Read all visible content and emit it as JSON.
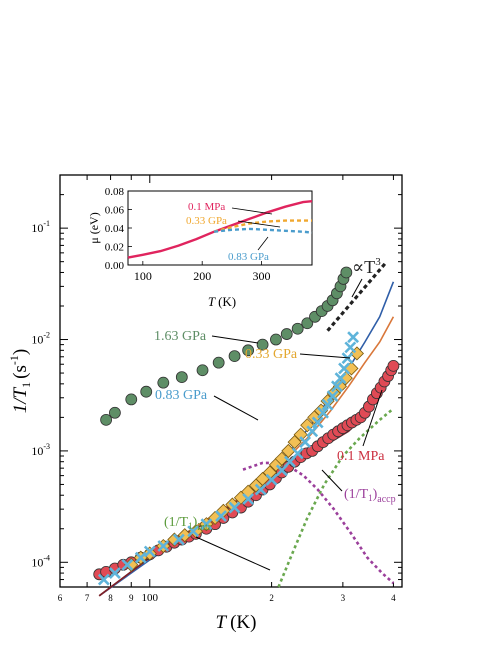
{
  "chart_data": [
    {
      "type": "scatter",
      "title": "",
      "xlabel": "T",
      "xlabel_unit": "(K)",
      "ylabel": "1/T",
      "ylabel_sub": "1",
      "ylabel_unit": "(s",
      "ylabel_unit_sup": "-1",
      "ylabel_unit_close": ")",
      "xscale": "log",
      "yscale": "log",
      "xlim": [
        60,
        420
      ],
      "ylim": [
        6e-05,
        0.3
      ],
      "x_ticks": [
        {
          "value": 60,
          "label": "6"
        },
        {
          "value": 70,
          "label": "7"
        },
        {
          "value": 80,
          "label": "8"
        },
        {
          "value": 90,
          "label": "9"
        },
        {
          "value": 100,
          "label": "100"
        },
        {
          "value": 200,
          "label": "2"
        },
        {
          "value": 300,
          "label": "3"
        },
        {
          "value": 400,
          "label": "4"
        }
      ],
      "y_ticks": [
        {
          "value": 0.0001,
          "base": "10",
          "exp": "-4"
        },
        {
          "value": 0.001,
          "base": "10",
          "exp": "-3"
        },
        {
          "value": 0.01,
          "base": "10",
          "exp": "-2"
        },
        {
          "value": 0.1,
          "base": "10",
          "exp": "-1"
        }
      ],
      "series": [
        {
          "name": "1.63 GPa",
          "marker": "circle",
          "color": "#5e8e66",
          "x": [
            78,
            82,
            90,
            98,
            108,
            120,
            135,
            148,
            162,
            175,
            190,
            205,
            218,
            232,
            245,
            256,
            266,
            275,
            283,
            290,
            296,
            301,
            306
          ],
          "y": [
            0.0019,
            0.0022,
            0.0029,
            0.0034,
            0.0041,
            0.0046,
            0.0053,
            0.0062,
            0.0071,
            0.008,
            0.009,
            0.01,
            0.0112,
            0.0125,
            0.014,
            0.016,
            0.018,
            0.02,
            0.0225,
            0.026,
            0.03,
            0.035,
            0.04
          ]
        },
        {
          "name": "0.33 GPa",
          "marker": "diamond",
          "color": "#f2c055",
          "x": [
            90,
            95,
            100,
            108,
            115,
            122,
            130,
            138,
            145,
            152,
            160,
            168,
            175,
            183,
            190,
            198,
            205,
            212,
            220,
            228,
            236,
            245,
            255,
            265,
            275,
            285,
            295,
            305,
            315,
            325
          ],
          "y": [
            9.5e-05,
            0.00011,
            0.00012,
            0.00014,
            0.00016,
            0.000175,
            0.00019,
            0.00022,
            0.00025,
            0.00029,
            0.00033,
            0.00038,
            0.00043,
            0.00049,
            0.00056,
            0.00064,
            0.00075,
            0.00085,
            0.001,
            0.0012,
            0.0014,
            0.0017,
            0.002,
            0.0023,
            0.0028,
            0.0033,
            0.0038,
            0.0045,
            0.0055,
            0.0075
          ]
        },
        {
          "name": "0.83 GPa",
          "marker": "x",
          "color": "#5fb4da",
          "x": [
            77,
            82,
            88,
            95,
            100,
            108,
            118,
            128,
            138,
            150,
            162,
            175,
            188,
            200,
            212,
            222,
            232,
            242,
            252,
            260,
            268,
            275,
            283,
            290,
            296,
            302,
            308,
            313,
            318
          ],
          "y": [
            7e-05,
            8e-05,
            9.5e-05,
            0.00011,
            0.000125,
            0.00014,
            0.00016,
            0.00019,
            0.00022,
            0.00026,
            0.00031,
            0.00037,
            0.00045,
            0.00055,
            0.00067,
            0.0008,
            0.00095,
            0.0012,
            0.0015,
            0.0018,
            0.0022,
            0.0026,
            0.0031,
            0.0038,
            0.0045,
            0.0055,
            0.0068,
            0.0085,
            0.0105
          ]
        },
        {
          "name": "0.1 MPa",
          "marker": "circle",
          "color": "#e04a55",
          "x": [
            75,
            78,
            82,
            86,
            90,
            95,
            100,
            105,
            110,
            115,
            120,
            125,
            130,
            138,
            145,
            152,
            160,
            168,
            175,
            183,
            190,
            198,
            205,
            212,
            220,
            228,
            236,
            244,
            252,
            260,
            268,
            276,
            284,
            292,
            300,
            308,
            316,
            324,
            332,
            340,
            348,
            356,
            364,
            372,
            380,
            388,
            395,
            400
          ],
          "y": [
            7.8e-05,
            8.2e-05,
            8.8e-05,
            9.5e-05,
            0.0001,
            0.00011,
            0.000118,
            0.000128,
            0.000138,
            0.00015,
            0.00016,
            0.00017,
            0.00018,
            0.0002,
            0.00022,
            0.00025,
            0.00028,
            0.00031,
            0.00035,
            0.0004,
            0.00045,
            0.0005,
            0.00057,
            0.00064,
            0.00072,
            0.0008,
            0.00088,
            0.00095,
            0.001,
            0.0011,
            0.0012,
            0.0013,
            0.0014,
            0.0015,
            0.0016,
            0.0017,
            0.0018,
            0.0019,
            0.002,
            0.0022,
            0.0025,
            0.0029,
            0.0033,
            0.0037,
            0.0042,
            0.0047,
            0.0053,
            0.0058
          ]
        }
      ],
      "fit_lines": [
        {
          "name": "fit-0.83 GPa",
          "color": "#2f5ea8",
          "x": [
            75,
            100,
            130,
            160,
            190,
            220,
            250,
            280,
            310,
            340,
            370,
            400
          ],
          "y": [
            5e-05,
            0.000105,
            0.0002,
            0.00033,
            0.00055,
            0.00095,
            0.0017,
            0.0031,
            0.0055,
            0.0095,
            0.016,
            0.033
          ]
        },
        {
          "name": "fit-0.33 GPa",
          "color": "#d9773a",
          "x": [
            75,
            100,
            130,
            160,
            190,
            220,
            250,
            280,
            310,
            340,
            370,
            400
          ],
          "y": [
            5e-05,
            0.00011,
            0.00021,
            0.00034,
            0.00054,
            0.00088,
            0.0014,
            0.0023,
            0.0038,
            0.0062,
            0.0095,
            0.016
          ]
        },
        {
          "name": "fit-0.1 MPa",
          "color": "#7a1f2b",
          "x": [
            75,
            100,
            130,
            160,
            190,
            220,
            250,
            280,
            310,
            340,
            370,
            400
          ],
          "y": [
            5e-05,
            0.00011,
            0.0002,
            0.00033,
            0.00052,
            0.00078,
            0.00098,
            0.0012,
            0.0015,
            0.0021,
            0.0032,
            0.0052
          ]
        },
        {
          "name": "T3-guide",
          "color": "#222222",
          "dash": "4,3",
          "width": 3.2,
          "x": [
            275,
            385
          ],
          "y": [
            0.012,
            0.05
          ]
        },
        {
          "name": "intr-component",
          "color": "#6aa84f",
          "dash": "3,3",
          "width": 2.6,
          "x": [
            208,
            225,
            245,
            270,
            300,
            330,
            370,
            400
          ],
          "y": [
            6e-05,
            0.00012,
            0.00025,
            0.0005,
            0.0009,
            0.0013,
            0.0019,
            0.0024
          ]
        },
        {
          "name": "accp-component",
          "color": "#9b3f9b",
          "dash": "3,3",
          "width": 2.6,
          "x": [
            170,
            190,
            205,
            222,
            240,
            260,
            285,
            315,
            345,
            375,
            400
          ],
          "y": [
            0.00068,
            0.00078,
            0.00078,
            0.00072,
            0.0006,
            0.00045,
            0.0003,
            0.00018,
            0.00011,
            8e-05,
            6.5e-05
          ]
        }
      ],
      "annotations": [
        {
          "name": "label-163",
          "text": "1.63 GPa",
          "color": "#5e8e66"
        },
        {
          "name": "label-033",
          "text": "0.33 GPa",
          "color": "#e3a72f"
        },
        {
          "name": "label-083",
          "text": "0.83 GPa",
          "color": "#4a9ccc"
        },
        {
          "name": "label-01",
          "text": "0.1 MPa",
          "color": "#cc3040"
        },
        {
          "name": "label-T3",
          "text": "∝T",
          "sup": "3",
          "color": "#222222"
        },
        {
          "name": "label-accp",
          "text": "(1/T",
          "sub": "1",
          "tail": ")",
          "sub2": "accp",
          "color": "#9b3f9b"
        },
        {
          "name": "label-intr",
          "text": "(1/T",
          "sub": "1",
          "tail": ")",
          "sub2": "intr",
          "color": "#5a9a3a"
        }
      ]
    },
    {
      "type": "line",
      "title": "",
      "xlabel": "T",
      "xlabel_unit": "(K)",
      "ylabel": "μ (eV)",
      "xlim": [
        75,
        385
      ],
      "ylim": [
        0,
        0.08
      ],
      "x_ticks": [
        100,
        200,
        300
      ],
      "y_ticks": [
        0,
        0.02,
        0.04,
        0.06,
        0.08
      ],
      "series": [
        {
          "name": "0.1 MPa",
          "color": "#e0245e",
          "dash": "",
          "x": [
            75,
            100,
            130,
            160,
            190,
            220,
            250,
            280,
            310,
            340,
            370,
            385
          ],
          "y": [
            0.008,
            0.011,
            0.015,
            0.021,
            0.028,
            0.036,
            0.043,
            0.05,
            0.057,
            0.063,
            0.068,
            0.069
          ]
        },
        {
          "name": "0.33 GPa",
          "color": "#f0a830",
          "dash": "4,3",
          "x": [
            220,
            250,
            280,
            310,
            340,
            370,
            385
          ],
          "y": [
            0.036,
            0.041,
            0.045,
            0.047,
            0.048,
            0.048,
            0.048
          ]
        },
        {
          "name": "0.83 GPa",
          "color": "#4a9ccc",
          "dash": "4,3",
          "x": [
            220,
            250,
            280,
            310,
            340,
            370,
            385
          ],
          "y": [
            0.036,
            0.038,
            0.039,
            0.038,
            0.037,
            0.036,
            0.035
          ]
        }
      ],
      "labels": [
        {
          "name": "inset-label-01",
          "text": "0.1 MPa",
          "color": "#e0245e"
        },
        {
          "name": "inset-label-033",
          "text": "0.33 GPa",
          "color": "#f0a830"
        },
        {
          "name": "inset-label-083",
          "text": "0.83 GPa",
          "color": "#4a9ccc"
        }
      ]
    }
  ]
}
